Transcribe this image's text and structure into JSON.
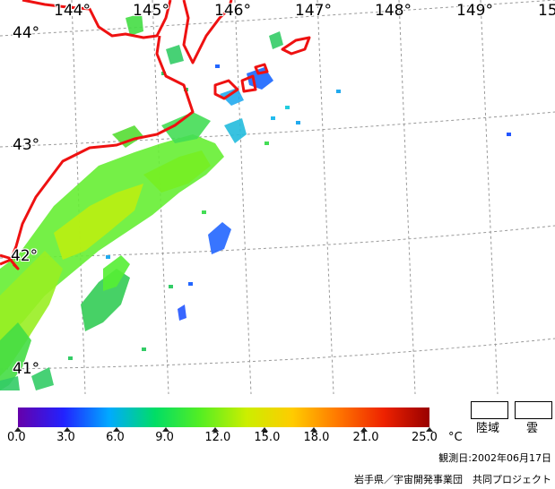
{
  "map": {
    "longitude_labels": [
      "144°",
      "145°",
      "146°",
      "147°",
      "148°",
      "149°",
      "15"
    ],
    "latitude_labels": [
      "44°",
      "43°",
      "42°",
      "41°"
    ],
    "coastline_color": "#ee1111",
    "graticule_color": "#999999"
  },
  "legend": {
    "colorbar_ticks": [
      "0.0",
      "3.0",
      "6.0",
      "9.0",
      "12.0",
      "15.0",
      "18.0",
      "21.0",
      "25.0"
    ],
    "unit": "°C",
    "colorbar_colors": [
      "#6600aa",
      "#2222ff",
      "#00aaff",
      "#00dd66",
      "#55ee22",
      "#ccee00",
      "#ffcc00",
      "#ff7700",
      "#ee2200",
      "#990000"
    ],
    "land_label": "陸域",
    "cloud_label": "雲"
  },
  "observation_date": "観測日:2002年06月17日",
  "credit": "岩手県／宇宙開発事業団　共同プロジェクト"
}
